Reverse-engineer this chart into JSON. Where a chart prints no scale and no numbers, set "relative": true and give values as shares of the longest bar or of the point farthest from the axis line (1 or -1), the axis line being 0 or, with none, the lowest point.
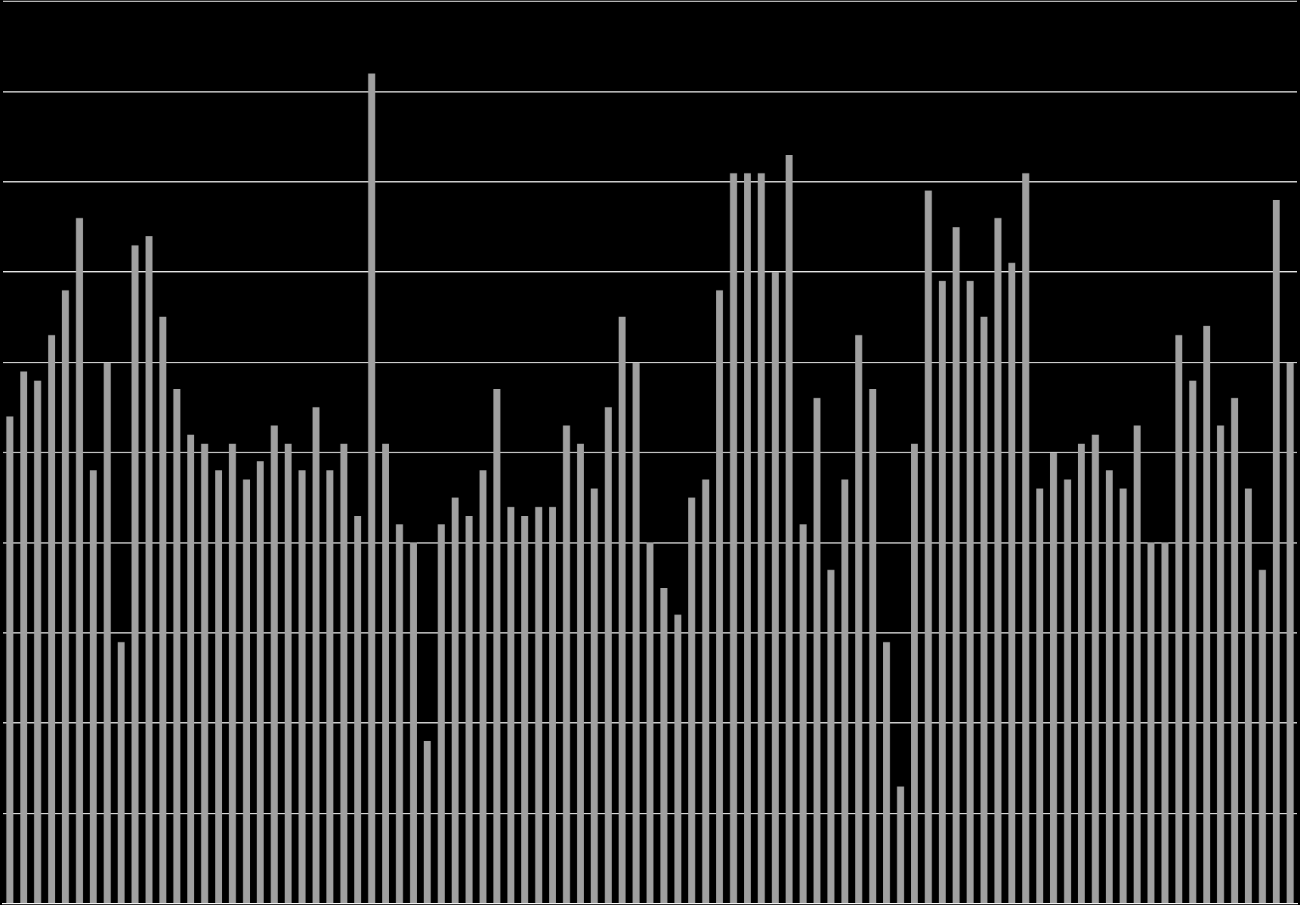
{
  "chart_data": {
    "type": "bar",
    "relative": true,
    "grid": "y",
    "color": "#a0a0a0",
    "categories": [
      null,
      null,
      null,
      null,
      null,
      null,
      null,
      null,
      null,
      null,
      null,
      null,
      null,
      null,
      null,
      null,
      null,
      null,
      null,
      null,
      null,
      null,
      null,
      null,
      null,
      null,
      null,
      null,
      null,
      null,
      null,
      null,
      null,
      null,
      null,
      null,
      null,
      null,
      null,
      null,
      null,
      null,
      null,
      null,
      null,
      null,
      null,
      null,
      null,
      null,
      null,
      null,
      null,
      null,
      null,
      null,
      null,
      null,
      null,
      null,
      null,
      null,
      null,
      null,
      null,
      null,
      null,
      null,
      null,
      null,
      null,
      null,
      null,
      null,
      null,
      null,
      null,
      null,
      null,
      null,
      null,
      null,
      null,
      null,
      null,
      null,
      null,
      null,
      null,
      null,
      null,
      null,
      null
    ],
    "values": [
      0.587,
      0.641,
      0.63,
      0.685,
      0.739,
      0.826,
      0.522,
      0.652,
      0.315,
      0.793,
      0.804,
      0.707,
      0.62,
      0.565,
      0.554,
      0.522,
      0.554,
      0.511,
      0.533,
      0.576,
      0.554,
      0.522,
      0.598,
      0.522,
      0.554,
      0.467,
      1,
      0.554,
      0.457,
      0.435,
      0.196,
      0.457,
      0.489,
      0.467,
      0.522,
      0.62,
      0.478,
      0.467,
      0.478,
      0.478,
      0.576,
      0.554,
      0.5,
      0.598,
      0.707,
      0.652,
      0.435,
      0.38,
      0.348,
      0.489,
      0.511,
      0.739,
      0.88,
      0.88,
      0.88,
      0.761,
      0.902,
      0.457,
      0.609,
      0.402,
      0.511,
      0.685,
      0.62,
      0.315,
      0.141,
      0.554,
      0.859,
      0.75,
      0.815,
      0.75,
      0.707,
      0.826,
      0.772,
      0.88,
      0.5,
      0.543,
      0.511,
      0.554,
      0.565,
      0.522,
      0.5,
      0.576,
      0.435,
      0.435,
      0.685,
      0.63,
      0.696,
      0.576,
      0.609,
      0.5,
      0.402,
      0.848,
      0.652
    ]
  }
}
